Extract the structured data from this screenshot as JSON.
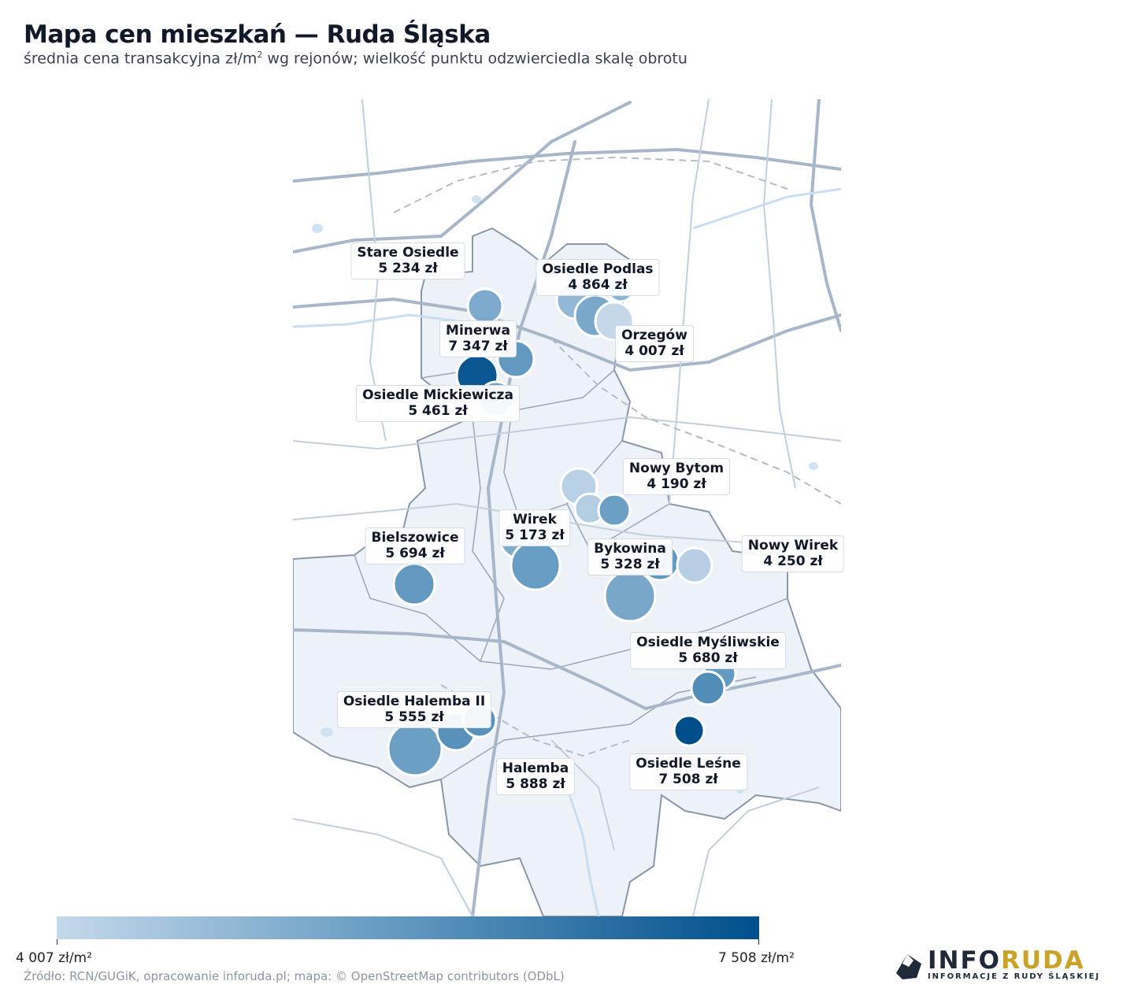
{
  "header": {
    "title": "Mapa cen mieszkań — Ruda Śląska",
    "subtitle_pre": "średnia cena transakcyjna zł/m",
    "subtitle_sup": "2",
    "subtitle_post": " wg rejonów; wielkość punktu odzwierciedla skalę obrotu"
  },
  "colors": {
    "scale_min": "#c4d8ea",
    "scale_mid": "#5f97bf",
    "scale_max": "#004f8c",
    "city_fill": "#edf2f8",
    "city_border": "#8b97a8",
    "road": "#b7c6d6",
    "water": "#cfe3f3"
  },
  "map": {
    "labels": [
      {
        "name": "Stare Osiedle",
        "price": "5 234 zł"
      },
      {
        "name": "Osiedle Podlas",
        "price": "4 864 zł"
      },
      {
        "name": "Minerwa",
        "price": "7 347 zł"
      },
      {
        "name": "Orzegów",
        "price": "4 007 zł"
      },
      {
        "name": "Osiedle Mickiewicza",
        "price": "5 461 zł"
      },
      {
        "name": "Nowy Bytom",
        "price": "4 190 zł"
      },
      {
        "name": "Wirek",
        "price": "5 173 zł"
      },
      {
        "name": "Bielszowice",
        "price": "5 694 zł"
      },
      {
        "name": "Bykowina",
        "price": "5 328 zł"
      },
      {
        "name": "Nowy Wirek",
        "price": "4 250 zł"
      },
      {
        "name": "Osiedle Myśliwskie",
        "price": "5 680 zł"
      },
      {
        "name": "Osiedle Halemba II",
        "price": "5 555 zł"
      },
      {
        "name": "Halemba",
        "price": "5 888 zł"
      },
      {
        "name": "Osiedle Leśne",
        "price": "7 508 zł"
      }
    ],
    "points": [
      {
        "price": 5234
      },
      {
        "price": 4864
      },
      {
        "price": 4950
      },
      {
        "price": 5300
      },
      {
        "price": 4007
      },
      {
        "price": 7347
      },
      {
        "price": 5700
      },
      {
        "price": 5461
      },
      {
        "price": 4190
      },
      {
        "price": 4300
      },
      {
        "price": 5550
      },
      {
        "price": 5173
      },
      {
        "price": 5600
      },
      {
        "price": 5694
      },
      {
        "price": 5328
      },
      {
        "price": 5700
      },
      {
        "price": 4250
      },
      {
        "price": 5680
      },
      {
        "price": 6000
      },
      {
        "price": 7508
      },
      {
        "price": 5555
      },
      {
        "price": 5888
      },
      {
        "price": 5900
      }
    ]
  },
  "colorbar": {
    "min_label": "4 007 zł/m²",
    "max_label": "7 508 zł/m²",
    "min": 4007,
    "max": 7508
  },
  "footer": {
    "source": "Źródło: RCN/GUGiK, opracowanie inforuda.pl; mapa: © OpenStreetMap contributors (ODbL)"
  },
  "logo": {
    "part1": "INFO",
    "part2": "RUDA",
    "tagline": "INFORMACJE Z RUDY ŚLĄSKIEJ"
  }
}
